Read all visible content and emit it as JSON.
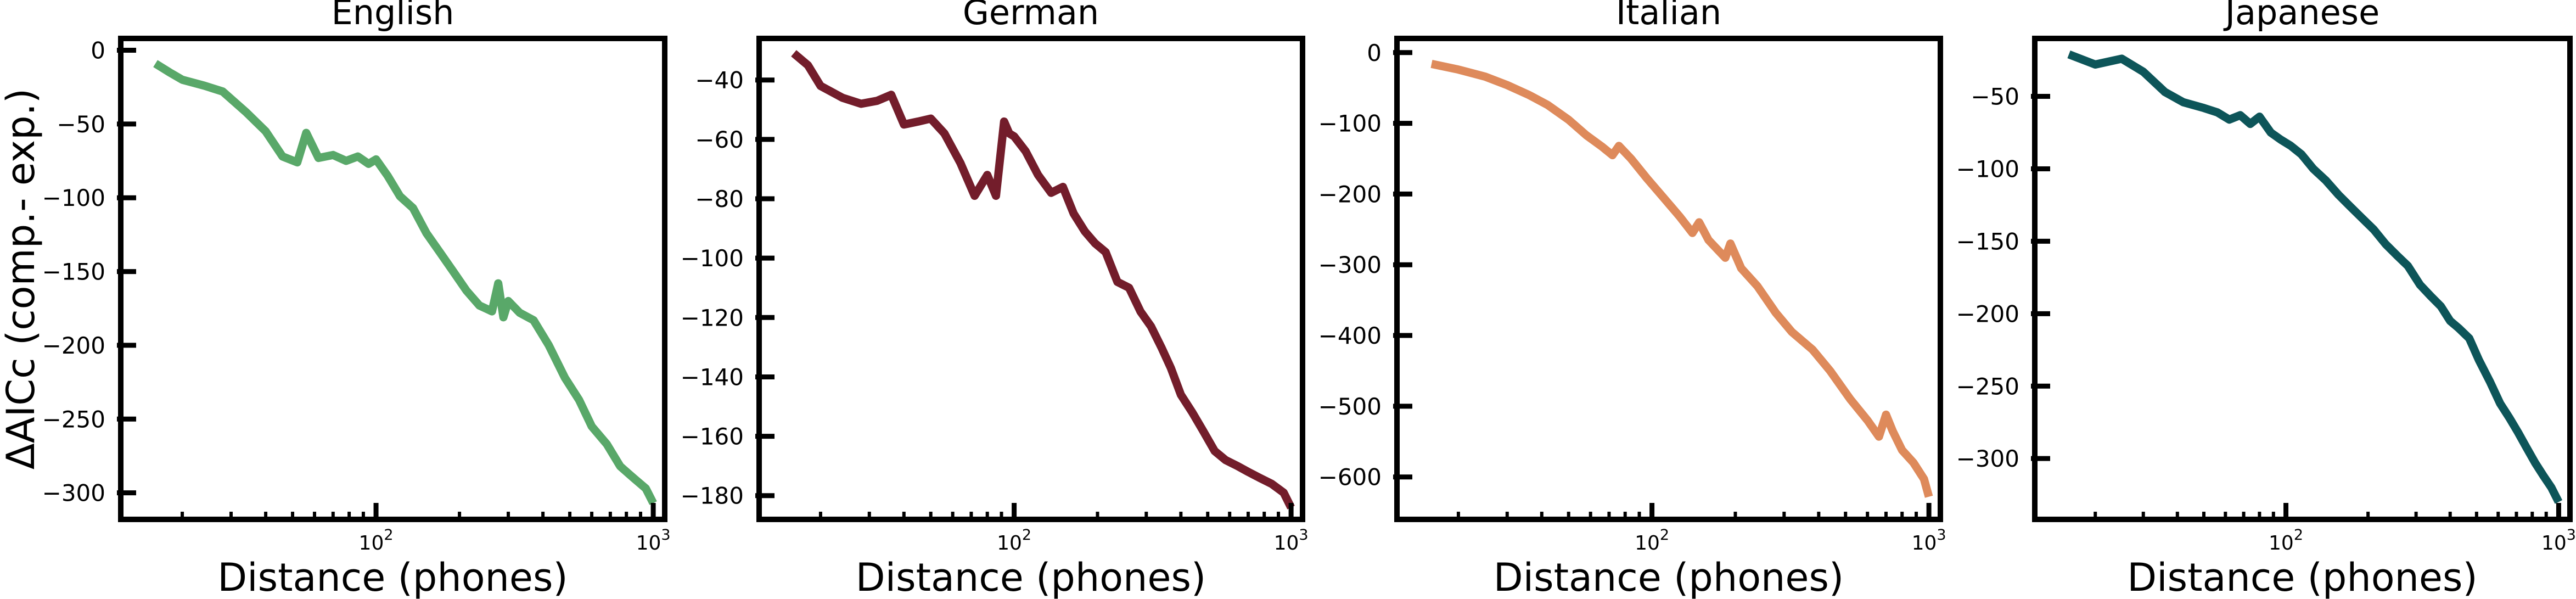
{
  "figure": {
    "ylabel": "ΔAICc (comp.- exp.)"
  },
  "chart_data": [
    {
      "type": "line",
      "title": "English",
      "xlabel": "Distance (phones)",
      "xscale": "log",
      "xlim": [
        12,
        1100
      ],
      "ylim": [
        -318,
        8
      ],
      "yticks": [
        0,
        -50,
        -100,
        -150,
        -200,
        -250,
        -300
      ],
      "xticks": [
        100,
        1000
      ],
      "grid": false,
      "color": "#59a869",
      "x": [
        16,
        18,
        20,
        24,
        28,
        34,
        40,
        46,
        52,
        56,
        62,
        70,
        78,
        86,
        94,
        100,
        110,
        122,
        136,
        152,
        170,
        190,
        212,
        236,
        262,
        276,
        288,
        300,
        330,
        370,
        420,
        480,
        540,
        600,
        680,
        760,
        850,
        940,
        1000
      ],
      "y": [
        -9,
        -15,
        -20,
        -24,
        -28,
        -42,
        -55,
        -72,
        -76,
        -56,
        -73,
        -71,
        -75,
        -72,
        -77,
        -74,
        -85,
        -99,
        -107,
        -124,
        -137,
        -150,
        -163,
        -173,
        -177,
        -158,
        -181,
        -170,
        -178,
        -183,
        -200,
        -222,
        -237,
        -255,
        -267,
        -282,
        -290,
        -297,
        -307
      ]
    },
    {
      "type": "line",
      "title": "German",
      "xlabel": "Distance (phones)",
      "xscale": "log",
      "xlim": [
        12,
        1100
      ],
      "ylim": [
        -188,
        -26
      ],
      "yticks": [
        -40,
        -60,
        -80,
        -100,
        -120,
        -140,
        -160,
        -180
      ],
      "xticks": [
        100,
        1000
      ],
      "grid": false,
      "color": "#731d2b",
      "x": [
        16,
        18,
        20,
        24,
        28,
        32,
        36,
        40,
        45,
        50,
        56,
        64,
        72,
        80,
        86,
        92,
        96,
        100,
        110,
        122,
        136,
        150,
        164,
        180,
        196,
        214,
        236,
        260,
        286,
        312,
        340,
        368,
        400,
        440,
        480,
        530,
        580,
        640,
        700,
        770,
        850,
        940,
        1000
      ],
      "y": [
        -31,
        -35,
        -42,
        -46,
        -48,
        -47,
        -45,
        -55,
        -54,
        -53,
        -58,
        -68,
        -79,
        -72,
        -79,
        -54,
        -58,
        -59,
        -64,
        -72,
        -78,
        -76,
        -85,
        -91,
        -95,
        -98,
        -108,
        -110,
        -118,
        -123,
        -130,
        -137,
        -146,
        -152,
        -158,
        -165,
        -168,
        -170,
        -172,
        -174,
        -176,
        -179,
        -184
      ]
    },
    {
      "type": "line",
      "title": "Italian",
      "xlabel": "Distance (phones)",
      "xscale": "log",
      "xlim": [
        12,
        1100
      ],
      "ylim": [
        -660,
        20
      ],
      "yticks": [
        0,
        -100,
        -200,
        -300,
        -400,
        -500,
        -600
      ],
      "xticks": [
        100,
        1000
      ],
      "grid": false,
      "color": "#de8a5b",
      "x": [
        16,
        20,
        25,
        30,
        36,
        42,
        50,
        58,
        66,
        72,
        76,
        84,
        96,
        110,
        126,
        140,
        148,
        160,
        172,
        184,
        192,
        210,
        240,
        280,
        320,
        380,
        440,
        520,
        600,
        660,
        700,
        740,
        800,
        880,
        960,
        1000
      ],
      "y": [
        -16,
        -24,
        -34,
        -46,
        -60,
        -74,
        -95,
        -117,
        -133,
        -145,
        -132,
        -150,
        -178,
        -205,
        -232,
        -255,
        -240,
        -265,
        -278,
        -290,
        -270,
        -305,
        -330,
        -368,
        -395,
        -420,
        -450,
        -490,
        -520,
        -543,
        -512,
        -535,
        -562,
        -580,
        -603,
        -628
      ]
    },
    {
      "type": "line",
      "title": "Japanese",
      "xlabel": "Distance (phones)",
      "xscale": "log",
      "xlim": [
        12,
        1100
      ],
      "ylim": [
        -342,
        -10
      ],
      "yticks": [
        -50,
        -100,
        -150,
        -200,
        -250,
        -300
      ],
      "xticks": [
        100,
        1000
      ],
      "grid": false,
      "color": "#0d5559",
      "x": [
        16,
        20,
        25,
        30,
        36,
        42,
        50,
        56,
        62,
        68,
        74,
        80,
        88,
        96,
        104,
        114,
        126,
        140,
        156,
        172,
        190,
        210,
        232,
        256,
        280,
        310,
        340,
        370,
        400,
        430,
        470,
        510,
        560,
        610,
        660,
        710,
        760,
        820,
        880,
        940,
        1000
      ],
      "y": [
        -21,
        -28,
        -24,
        -33,
        -47,
        -54,
        -58,
        -61,
        -66,
        -63,
        -69,
        -64,
        -75,
        -80,
        -84,
        -90,
        -100,
        -108,
        -118,
        -126,
        -134,
        -142,
        -152,
        -160,
        -167,
        -180,
        -188,
        -195,
        -205,
        -210,
        -217,
        -232,
        -247,
        -262,
        -272,
        -282,
        -292,
        -303,
        -312,
        -320,
        -330
      ]
    }
  ]
}
